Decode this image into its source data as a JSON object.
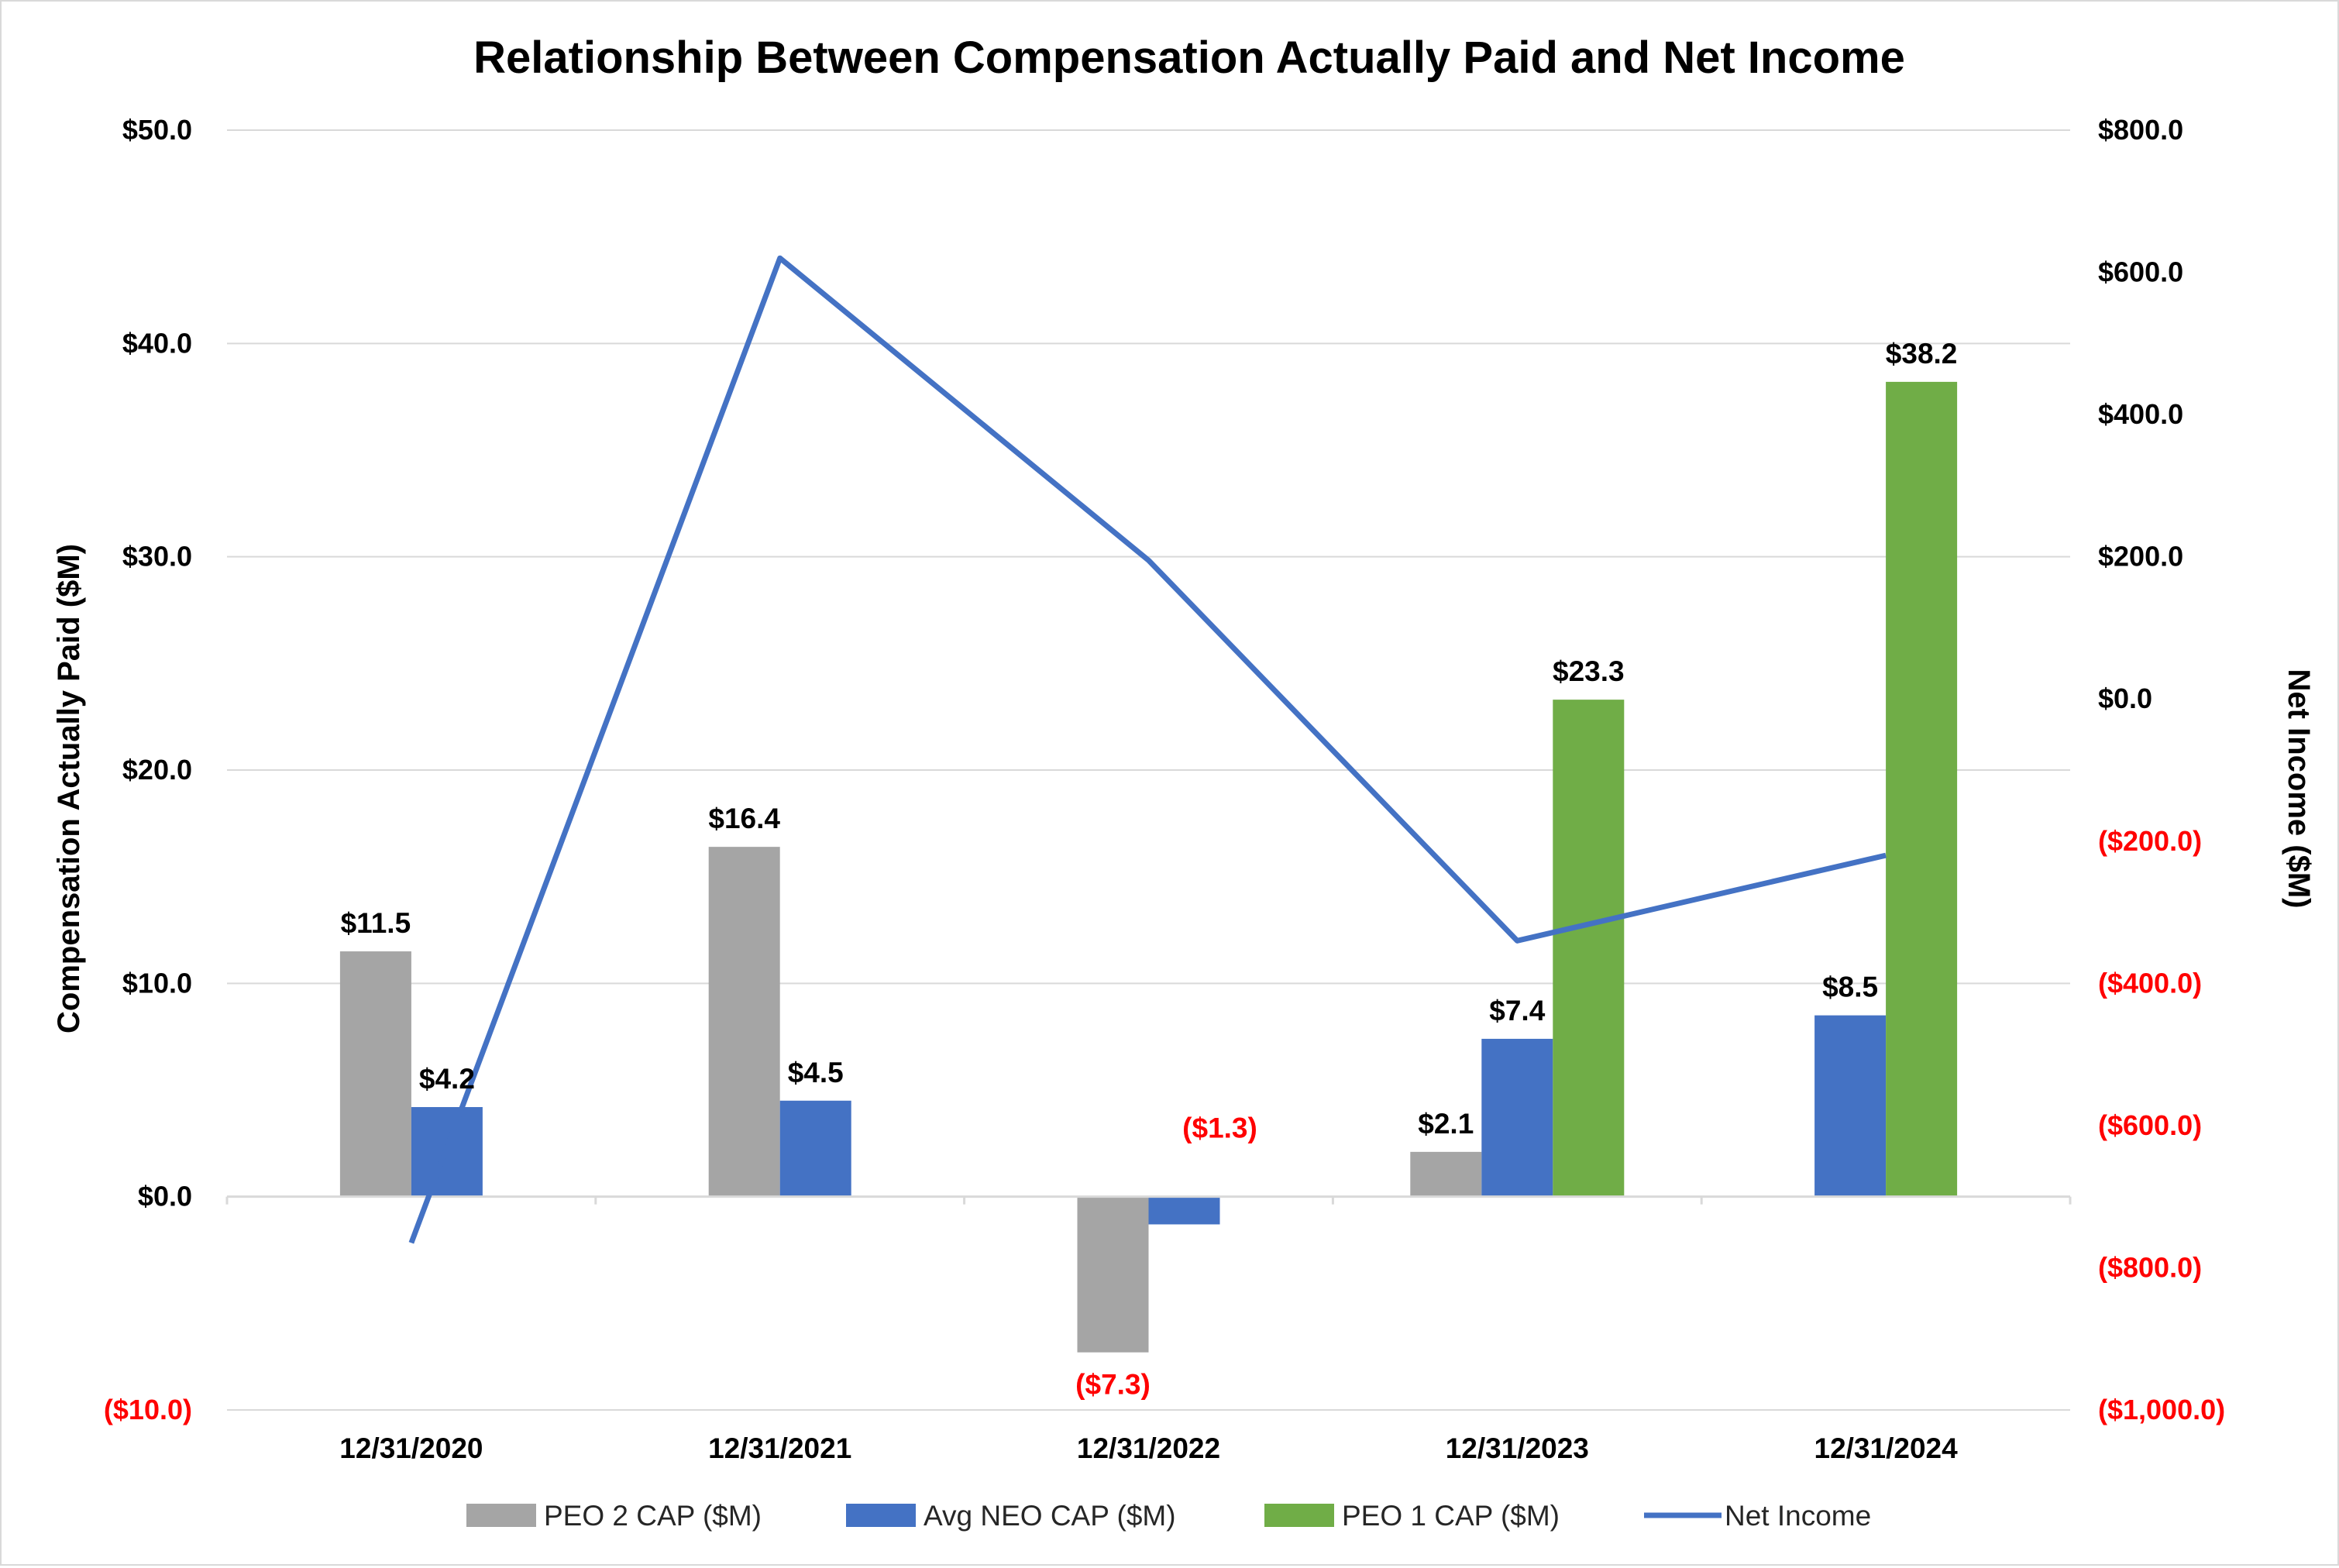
{
  "chart_data": {
    "type": "bar+line",
    "title": "Relationship Between Compensation Actually Paid and Net Income",
    "categories": [
      "12/31/2020",
      "12/31/2021",
      "12/31/2022",
      "12/31/2023",
      "12/31/2024"
    ],
    "ylabel_left": "Compensation Actually Paid ($M)",
    "ylabel_right": "Net Income ($M)",
    "ylim_left": [
      -10,
      50
    ],
    "ylim_right": [
      -1000,
      800
    ],
    "yticks_left": [
      {
        "value": 50,
        "label": "$50.0"
      },
      {
        "value": 40,
        "label": "$40.0"
      },
      {
        "value": 30,
        "label": "$30.0"
      },
      {
        "value": 20,
        "label": "$20.0"
      },
      {
        "value": 10,
        "label": "$10.0"
      },
      {
        "value": 0,
        "label": "$0.0"
      },
      {
        "value": -10,
        "label": "($10.0)"
      }
    ],
    "yticks_right": [
      {
        "value": 800,
        "label": "$800.0"
      },
      {
        "value": 600,
        "label": "$600.0"
      },
      {
        "value": 400,
        "label": "$400.0"
      },
      {
        "value": 200,
        "label": "$200.0"
      },
      {
        "value": 0,
        "label": "$0.0"
      },
      {
        "value": -200,
        "label": "($200.0)"
      },
      {
        "value": -400,
        "label": "($400.0)"
      },
      {
        "value": -600,
        "label": "($600.0)"
      },
      {
        "value": -800,
        "label": "($800.0)"
      },
      {
        "value": -1000,
        "label": "($1,000.0)"
      }
    ],
    "grid": true,
    "legend_position": "bottom",
    "series": [
      {
        "name": "PEO 2 CAP ($M)",
        "type": "bar",
        "axis": "left",
        "color": "#a5a5a5",
        "values": [
          11.5,
          16.4,
          -7.3,
          2.1,
          null
        ],
        "labels": [
          "$11.5",
          "$16.4",
          "($7.3)",
          "$2.1",
          null
        ]
      },
      {
        "name": "Avg NEO CAP ($M)",
        "type": "bar",
        "axis": "left",
        "color": "#4472c4",
        "values": [
          4.2,
          4.5,
          -1.3,
          7.4,
          8.5
        ],
        "labels": [
          "$4.2",
          "$4.5",
          "($1.3)",
          "$7.4",
          "$8.5"
        ]
      },
      {
        "name": "PEO 1 CAP ($M)",
        "type": "bar",
        "axis": "left",
        "color": "#70ad47",
        "values": [
          null,
          null,
          null,
          23.3,
          38.2
        ],
        "labels": [
          null,
          null,
          null,
          "$23.3",
          "$38.2"
        ]
      },
      {
        "name": "Net Income",
        "type": "line",
        "axis": "right",
        "color": "#4472c4",
        "values": [
          -765,
          620,
          195,
          -340,
          -220
        ]
      }
    ],
    "colors": {
      "text": "#000000",
      "negative": "#ff0000",
      "grid": "#d9d9d9"
    }
  }
}
